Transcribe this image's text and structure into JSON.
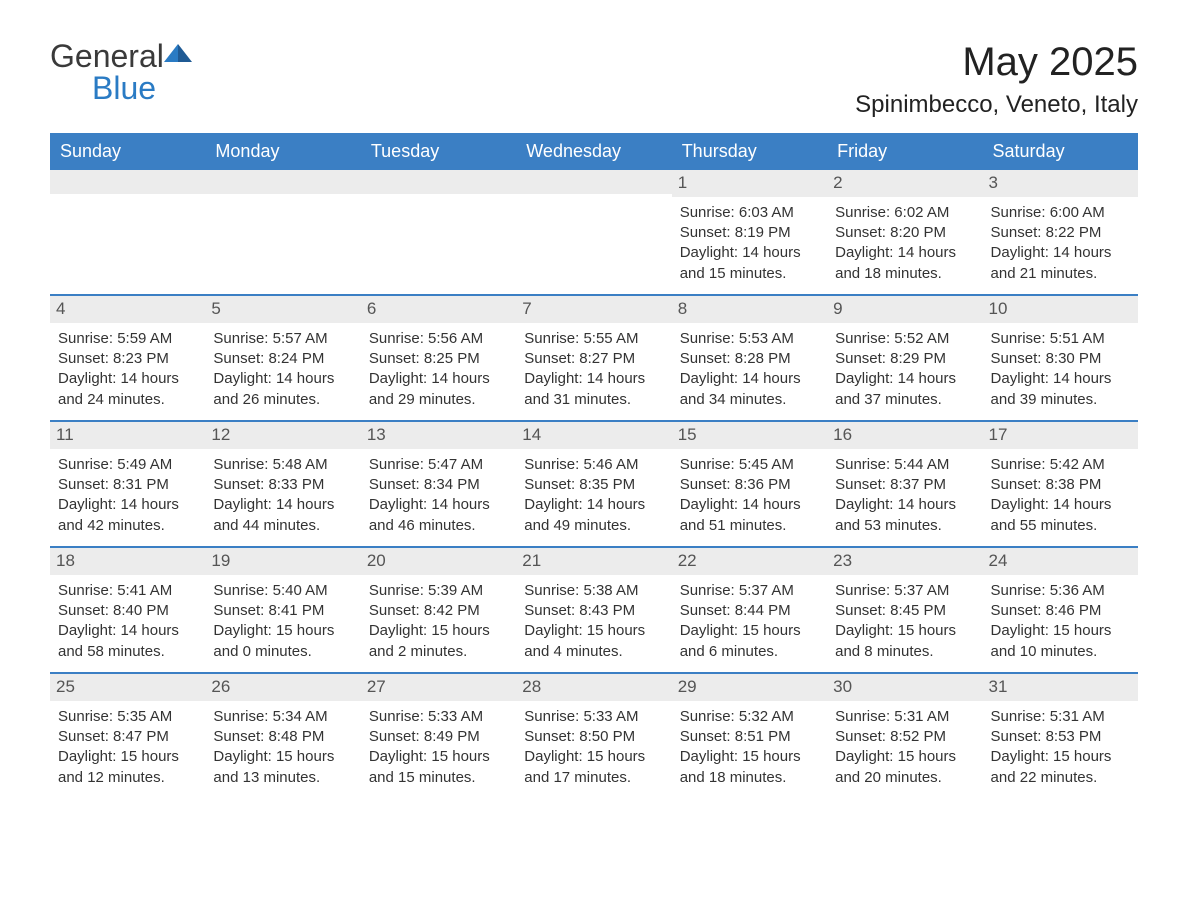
{
  "brand": {
    "part1": "General",
    "part2": "Blue"
  },
  "title": "May 2025",
  "location": "Spinimbecco, Veneto, Italy",
  "colors": {
    "header_bg": "#3b7fc4",
    "header_text": "#ffffff",
    "daynum_bg": "#ececec",
    "text": "#333333",
    "brand_blue": "#2a7bc4",
    "rule": "#3b7fc4",
    "background": "#ffffff"
  },
  "fonts": {
    "title_size": 40,
    "location_size": 24,
    "dayhdr_size": 18,
    "cell_size": 15
  },
  "day_headers": [
    "Sunday",
    "Monday",
    "Tuesday",
    "Wednesday",
    "Thursday",
    "Friday",
    "Saturday"
  ],
  "labels": {
    "sunrise": "Sunrise: ",
    "sunset": "Sunset: ",
    "daylight": "Daylight: "
  },
  "weeks": [
    [
      {
        "blank": true
      },
      {
        "blank": true
      },
      {
        "blank": true
      },
      {
        "blank": true
      },
      {
        "n": "1",
        "sr": "6:03 AM",
        "ss": "8:19 PM",
        "dl": "14 hours and 15 minutes."
      },
      {
        "n": "2",
        "sr": "6:02 AM",
        "ss": "8:20 PM",
        "dl": "14 hours and 18 minutes."
      },
      {
        "n": "3",
        "sr": "6:00 AM",
        "ss": "8:22 PM",
        "dl": "14 hours and 21 minutes."
      }
    ],
    [
      {
        "n": "4",
        "sr": "5:59 AM",
        "ss": "8:23 PM",
        "dl": "14 hours and 24 minutes."
      },
      {
        "n": "5",
        "sr": "5:57 AM",
        "ss": "8:24 PM",
        "dl": "14 hours and 26 minutes."
      },
      {
        "n": "6",
        "sr": "5:56 AM",
        "ss": "8:25 PM",
        "dl": "14 hours and 29 minutes."
      },
      {
        "n": "7",
        "sr": "5:55 AM",
        "ss": "8:27 PM",
        "dl": "14 hours and 31 minutes."
      },
      {
        "n": "8",
        "sr": "5:53 AM",
        "ss": "8:28 PM",
        "dl": "14 hours and 34 minutes."
      },
      {
        "n": "9",
        "sr": "5:52 AM",
        "ss": "8:29 PM",
        "dl": "14 hours and 37 minutes."
      },
      {
        "n": "10",
        "sr": "5:51 AM",
        "ss": "8:30 PM",
        "dl": "14 hours and 39 minutes."
      }
    ],
    [
      {
        "n": "11",
        "sr": "5:49 AM",
        "ss": "8:31 PM",
        "dl": "14 hours and 42 minutes."
      },
      {
        "n": "12",
        "sr": "5:48 AM",
        "ss": "8:33 PM",
        "dl": "14 hours and 44 minutes."
      },
      {
        "n": "13",
        "sr": "5:47 AM",
        "ss": "8:34 PM",
        "dl": "14 hours and 46 minutes."
      },
      {
        "n": "14",
        "sr": "5:46 AM",
        "ss": "8:35 PM",
        "dl": "14 hours and 49 minutes."
      },
      {
        "n": "15",
        "sr": "5:45 AM",
        "ss": "8:36 PM",
        "dl": "14 hours and 51 minutes."
      },
      {
        "n": "16",
        "sr": "5:44 AM",
        "ss": "8:37 PM",
        "dl": "14 hours and 53 minutes."
      },
      {
        "n": "17",
        "sr": "5:42 AM",
        "ss": "8:38 PM",
        "dl": "14 hours and 55 minutes."
      }
    ],
    [
      {
        "n": "18",
        "sr": "5:41 AM",
        "ss": "8:40 PM",
        "dl": "14 hours and 58 minutes."
      },
      {
        "n": "19",
        "sr": "5:40 AM",
        "ss": "8:41 PM",
        "dl": "15 hours and 0 minutes."
      },
      {
        "n": "20",
        "sr": "5:39 AM",
        "ss": "8:42 PM",
        "dl": "15 hours and 2 minutes."
      },
      {
        "n": "21",
        "sr": "5:38 AM",
        "ss": "8:43 PM",
        "dl": "15 hours and 4 minutes."
      },
      {
        "n": "22",
        "sr": "5:37 AM",
        "ss": "8:44 PM",
        "dl": "15 hours and 6 minutes."
      },
      {
        "n": "23",
        "sr": "5:37 AM",
        "ss": "8:45 PM",
        "dl": "15 hours and 8 minutes."
      },
      {
        "n": "24",
        "sr": "5:36 AM",
        "ss": "8:46 PM",
        "dl": "15 hours and 10 minutes."
      }
    ],
    [
      {
        "n": "25",
        "sr": "5:35 AM",
        "ss": "8:47 PM",
        "dl": "15 hours and 12 minutes."
      },
      {
        "n": "26",
        "sr": "5:34 AM",
        "ss": "8:48 PM",
        "dl": "15 hours and 13 minutes."
      },
      {
        "n": "27",
        "sr": "5:33 AM",
        "ss": "8:49 PM",
        "dl": "15 hours and 15 minutes."
      },
      {
        "n": "28",
        "sr": "5:33 AM",
        "ss": "8:50 PM",
        "dl": "15 hours and 17 minutes."
      },
      {
        "n": "29",
        "sr": "5:32 AM",
        "ss": "8:51 PM",
        "dl": "15 hours and 18 minutes."
      },
      {
        "n": "30",
        "sr": "5:31 AM",
        "ss": "8:52 PM",
        "dl": "15 hours and 20 minutes."
      },
      {
        "n": "31",
        "sr": "5:31 AM",
        "ss": "8:53 PM",
        "dl": "15 hours and 22 minutes."
      }
    ]
  ]
}
